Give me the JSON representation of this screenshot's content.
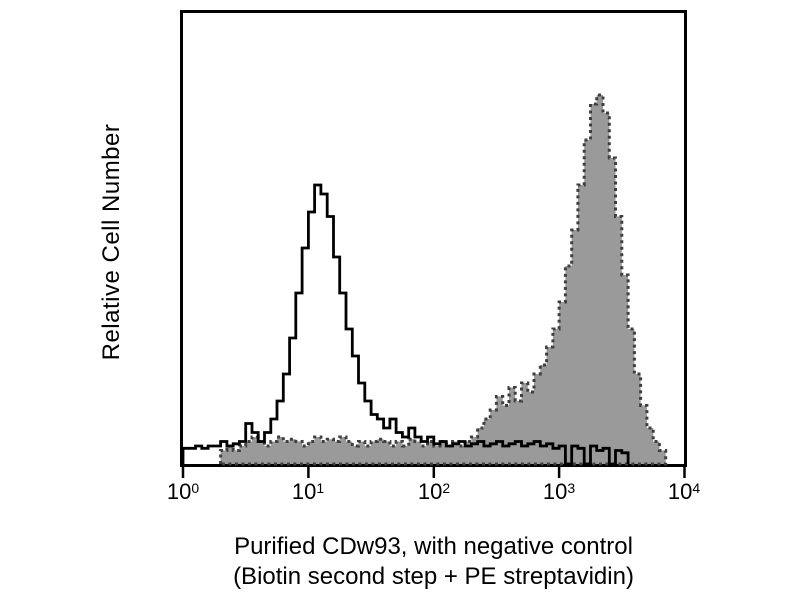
{
  "figure": {
    "y_axis_label": "Relative Cell Number",
    "x_axis_title_line1": "Purified CDw93, with negative control",
    "x_axis_title_line2": "(Biotin second step + PE streptavidin)"
  },
  "chart_data": {
    "type": "area",
    "subtype": "flow-cytometry-overlay-histogram",
    "title": "",
    "xlabel": "Purified CDw93, with negative control (Biotin second step + PE streptavidin)",
    "ylabel": "Relative Cell Number",
    "x_scale": "log10",
    "x_range": [
      1,
      10000
    ],
    "ylim": [
      0,
      1
    ],
    "grid": false,
    "legend": "none",
    "x_ticks": [
      {
        "base": "10",
        "exp": "0"
      },
      {
        "base": "10",
        "exp": "1"
      },
      {
        "base": "10",
        "exp": "2"
      },
      {
        "base": "10",
        "exp": "3"
      },
      {
        "base": "10",
        "exp": "4"
      }
    ],
    "bins_log10_start": 0,
    "bins_log10_step": 0.05,
    "colors": {
      "open_outline": "#000000",
      "filled_fill": "#9a9a9a",
      "filled_outline": "#3f3f3f",
      "axis": "#000000",
      "background": "#ffffff"
    },
    "series": [
      {
        "name": "negative control (Biotin second step + PE streptavidin)",
        "style": "open-black-outline",
        "peak_x": 12,
        "peak_height": 0.62,
        "values": [
          0.035,
          0.035,
          0.04,
          0.035,
          0.04,
          0.04,
          0.05,
          0.04,
          0.045,
          0.05,
          0.09,
          0.07,
          0.05,
          0.07,
          0.1,
          0.14,
          0.2,
          0.28,
          0.38,
          0.48,
          0.56,
          0.62,
          0.6,
          0.55,
          0.46,
          0.38,
          0.3,
          0.24,
          0.18,
          0.14,
          0.11,
          0.1,
          0.08,
          0.1,
          0.07,
          0.06,
          0.08,
          0.06,
          0.05,
          0.06,
          0.045,
          0.05,
          0.04,
          0.045,
          0.05,
          0.04,
          0.045,
          0.05,
          0.04,
          0.045,
          0.05,
          0.04,
          0.045,
          0.05,
          0.04,
          0.045,
          0.05,
          0.04,
          0.045,
          0.035,
          0.04,
          0,
          0.04,
          0.035,
          0,
          0.04,
          0.03,
          0.035,
          0,
          0.03,
          0.025,
          0,
          0,
          0,
          0,
          0,
          0,
          0,
          0,
          0
        ]
      },
      {
        "name": "Purified CDw93",
        "style": "gray-filled-dashed-outline",
        "peak_x": 2000,
        "peak_height": 0.82,
        "values": [
          0,
          0,
          0,
          0,
          0,
          0,
          0.03,
          0.04,
          0.03,
          0.04,
          0.05,
          0.06,
          0.05,
          0.04,
          0.05,
          0.06,
          0.05,
          0.055,
          0.05,
          0.04,
          0.05,
          0.06,
          0.05,
          0.055,
          0.05,
          0.06,
          0.05,
          0.04,
          0.05,
          0.04,
          0.05,
          0.055,
          0.05,
          0.04,
          0.05,
          0.04,
          0.055,
          0.05,
          0.04,
          0.05,
          0.04,
          0.05,
          0.04,
          0.05,
          0.04,
          0.05,
          0.06,
          0.08,
          0.1,
          0.12,
          0.15,
          0.13,
          0.17,
          0.14,
          0.18,
          0.16,
          0.2,
          0.22,
          0.26,
          0.3,
          0.36,
          0.44,
          0.52,
          0.62,
          0.72,
          0.8,
          0.82,
          0.78,
          0.68,
          0.55,
          0.42,
          0.3,
          0.2,
          0.13,
          0.08,
          0.05,
          0.03,
          0,
          0,
          0
        ]
      }
    ]
  }
}
